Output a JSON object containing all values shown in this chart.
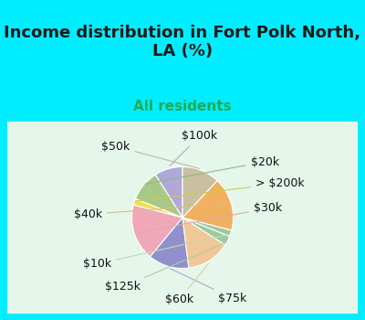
{
  "title": "Income distribution in Fort Polk North,\nLA (%)",
  "subtitle": "All residents",
  "bg_cyan": "#00eeff",
  "bg_chart": "#e0f2e8",
  "labels": [
    "$100k",
    "$20k",
    "> $200k",
    "$30k",
    "$75k",
    "$60k",
    "$125k",
    "$10k",
    "$40k",
    "$50k"
  ],
  "values": [
    9,
    10,
    2,
    18,
    13,
    14,
    3,
    2,
    17,
    12
  ],
  "colors": [
    "#b0a8d8",
    "#a8c888",
    "#f0e050",
    "#f0a8b8",
    "#9090cc",
    "#f0c898",
    "#a0c8a0",
    "#a0c8a0",
    "#f0b060",
    "#c8c0a0"
  ],
  "startangle": 90,
  "title_fontsize": 13,
  "subtitle_fontsize": 11,
  "label_fontsize": 9
}
